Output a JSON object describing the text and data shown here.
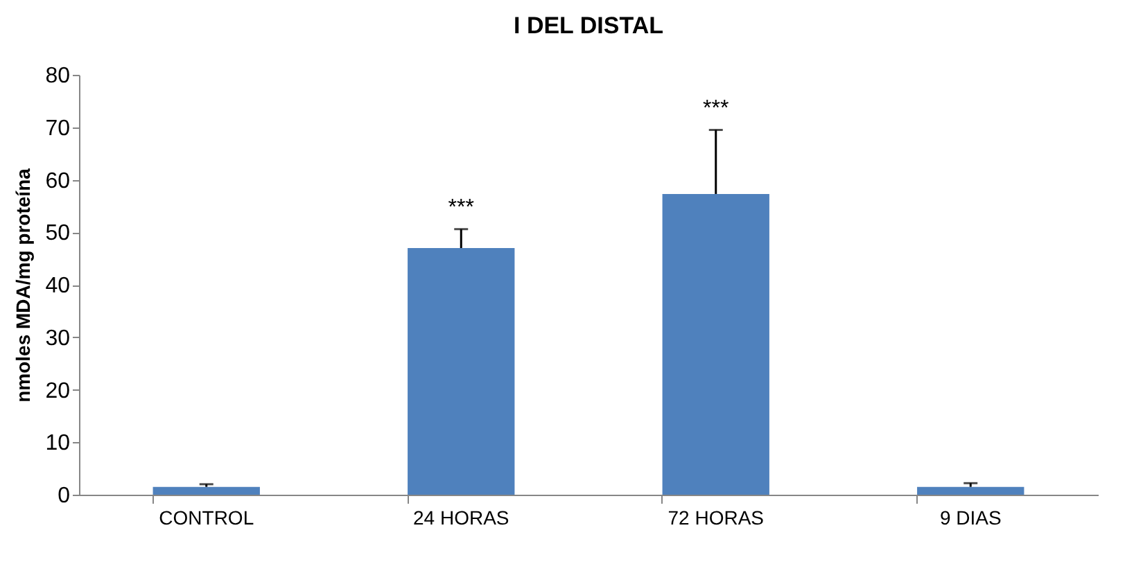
{
  "chart_data": {
    "type": "bar",
    "title": "I DEL DISTAL",
    "ylabel": "nmoles MDA/mg proteína",
    "categories": [
      "CONTROL",
      "24 HORAS",
      "72 HORAS",
      "9 DIAS"
    ],
    "values": [
      1.5,
      47,
      57.3,
      1.5
    ],
    "errors": [
      [
        1.5,
        2
      ],
      [
        47,
        50.6
      ],
      [
        57.3,
        69.5
      ],
      [
        1.5,
        2.2
      ]
    ],
    "color": "#4f81bd",
    "ylim": [
      0,
      80
    ],
    "yticks": [
      0,
      10,
      20,
      30,
      40,
      50,
      60,
      70,
      80
    ],
    "grid": false,
    "annotations": [
      {
        "text": "***",
        "x": "24 HORAS",
        "y": 50.6
      },
      {
        "text": "***",
        "x": "72 HORAS",
        "y": 69.5
      }
    ]
  }
}
